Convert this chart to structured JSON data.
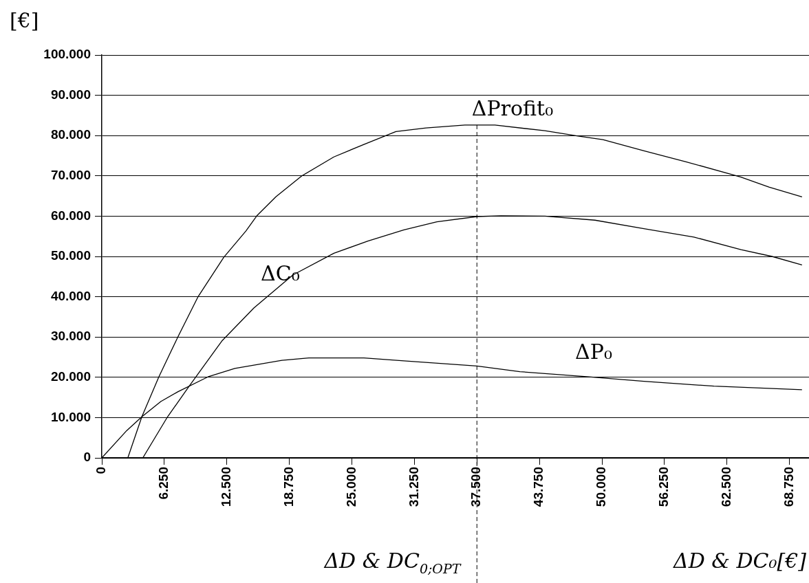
{
  "chart_data": {
    "type": "line",
    "xlabel": "ΔD & DC₀[€]",
    "ylabel": "[€]",
    "xlim": [
      0,
      70700
    ],
    "ylim": [
      0,
      100000
    ],
    "xticks": [
      0,
      {
        "value": 6250,
        "label": "6.250"
      },
      {
        "value": 12500,
        "label": "12.500"
      },
      {
        "value": 18750,
        "label": "18.750"
      },
      {
        "value": 25000,
        "label": "25.000"
      },
      {
        "value": 31250,
        "label": "31.250"
      },
      {
        "value": 37500,
        "label": "37.500"
      },
      {
        "value": 43750,
        "label": "43.750"
      },
      {
        "value": 50000,
        "label": "50.000"
      },
      {
        "value": 56250,
        "label": "56.250"
      },
      {
        "value": 62500,
        "label": "62.500"
      },
      {
        "value": 68750,
        "label": "68.750"
      }
    ],
    "yticks": [
      0,
      {
        "value": 10000,
        "label": "10.000"
      },
      {
        "value": 20000,
        "label": "20.000"
      },
      {
        "value": 30000,
        "label": "30.000"
      },
      {
        "value": 40000,
        "label": "40.000"
      },
      {
        "value": 50000,
        "label": "50.000"
      },
      {
        "value": 60000,
        "label": "60.000"
      },
      {
        "value": 70000,
        "label": "70.000"
      },
      {
        "value": 80000,
        "label": "80.000"
      },
      {
        "value": 90000,
        "label": "90.000"
      },
      {
        "value": 100000,
        "label": "100.000"
      }
    ],
    "grid": "y",
    "legend": false,
    "marker": "none",
    "line_style": "solid",
    "series": [
      {
        "name": "ΔProfit₀",
        "color": "#000000",
        "x": [
          2600,
          4000,
          5700,
          7600,
          9600,
          12200,
          14400,
          15500,
          17400,
          20000,
          23200,
          26200,
          29400,
          32400,
          36300,
          39300,
          44300,
          47600,
          50100,
          54200,
          58400,
          63900,
          66700,
          70000
        ],
        "values": [
          0,
          10200,
          20100,
          30000,
          39900,
          49800,
          56300,
          60100,
          64800,
          70000,
          74700,
          77800,
          81000,
          81900,
          82600,
          82600,
          81200,
          79900,
          79000,
          76200,
          73500,
          69700,
          67200,
          64800
        ]
      },
      {
        "name": "ΔC₀",
        "color": "#000000",
        "x": [
          4100,
          6500,
          8700,
          12000,
          15200,
          19100,
          23200,
          26600,
          30200,
          33500,
          37500,
          39900,
          44300,
          49300,
          54200,
          59200,
          63900,
          67000,
          70000
        ],
        "values": [
          0,
          9900,
          17700,
          29000,
          37200,
          45400,
          50800,
          53800,
          56600,
          58600,
          59900,
          60100,
          60000,
          59000,
          56900,
          54800,
          51700,
          50000,
          47900
        ]
      },
      {
        "name": "ΔP₀",
        "color": "#000000",
        "x": [
          0,
          2500,
          4000,
          5900,
          7600,
          10600,
          13300,
          18000,
          20700,
          26200,
          30200,
          37500,
          41800,
          48700,
          54200,
          61200,
          70000
        ],
        "values": [
          0,
          6800,
          10200,
          14000,
          16400,
          20100,
          22200,
          24200,
          24800,
          24800,
          24100,
          22800,
          21400,
          20100,
          19000,
          17800,
          16900
        ]
      }
    ],
    "ref_lines": [
      {
        "axis": "x",
        "value": 37500,
        "label": "ΔD & DC$_{0;OPT}$",
        "line_style": "dashed",
        "color": "#000000"
      }
    ]
  }
}
